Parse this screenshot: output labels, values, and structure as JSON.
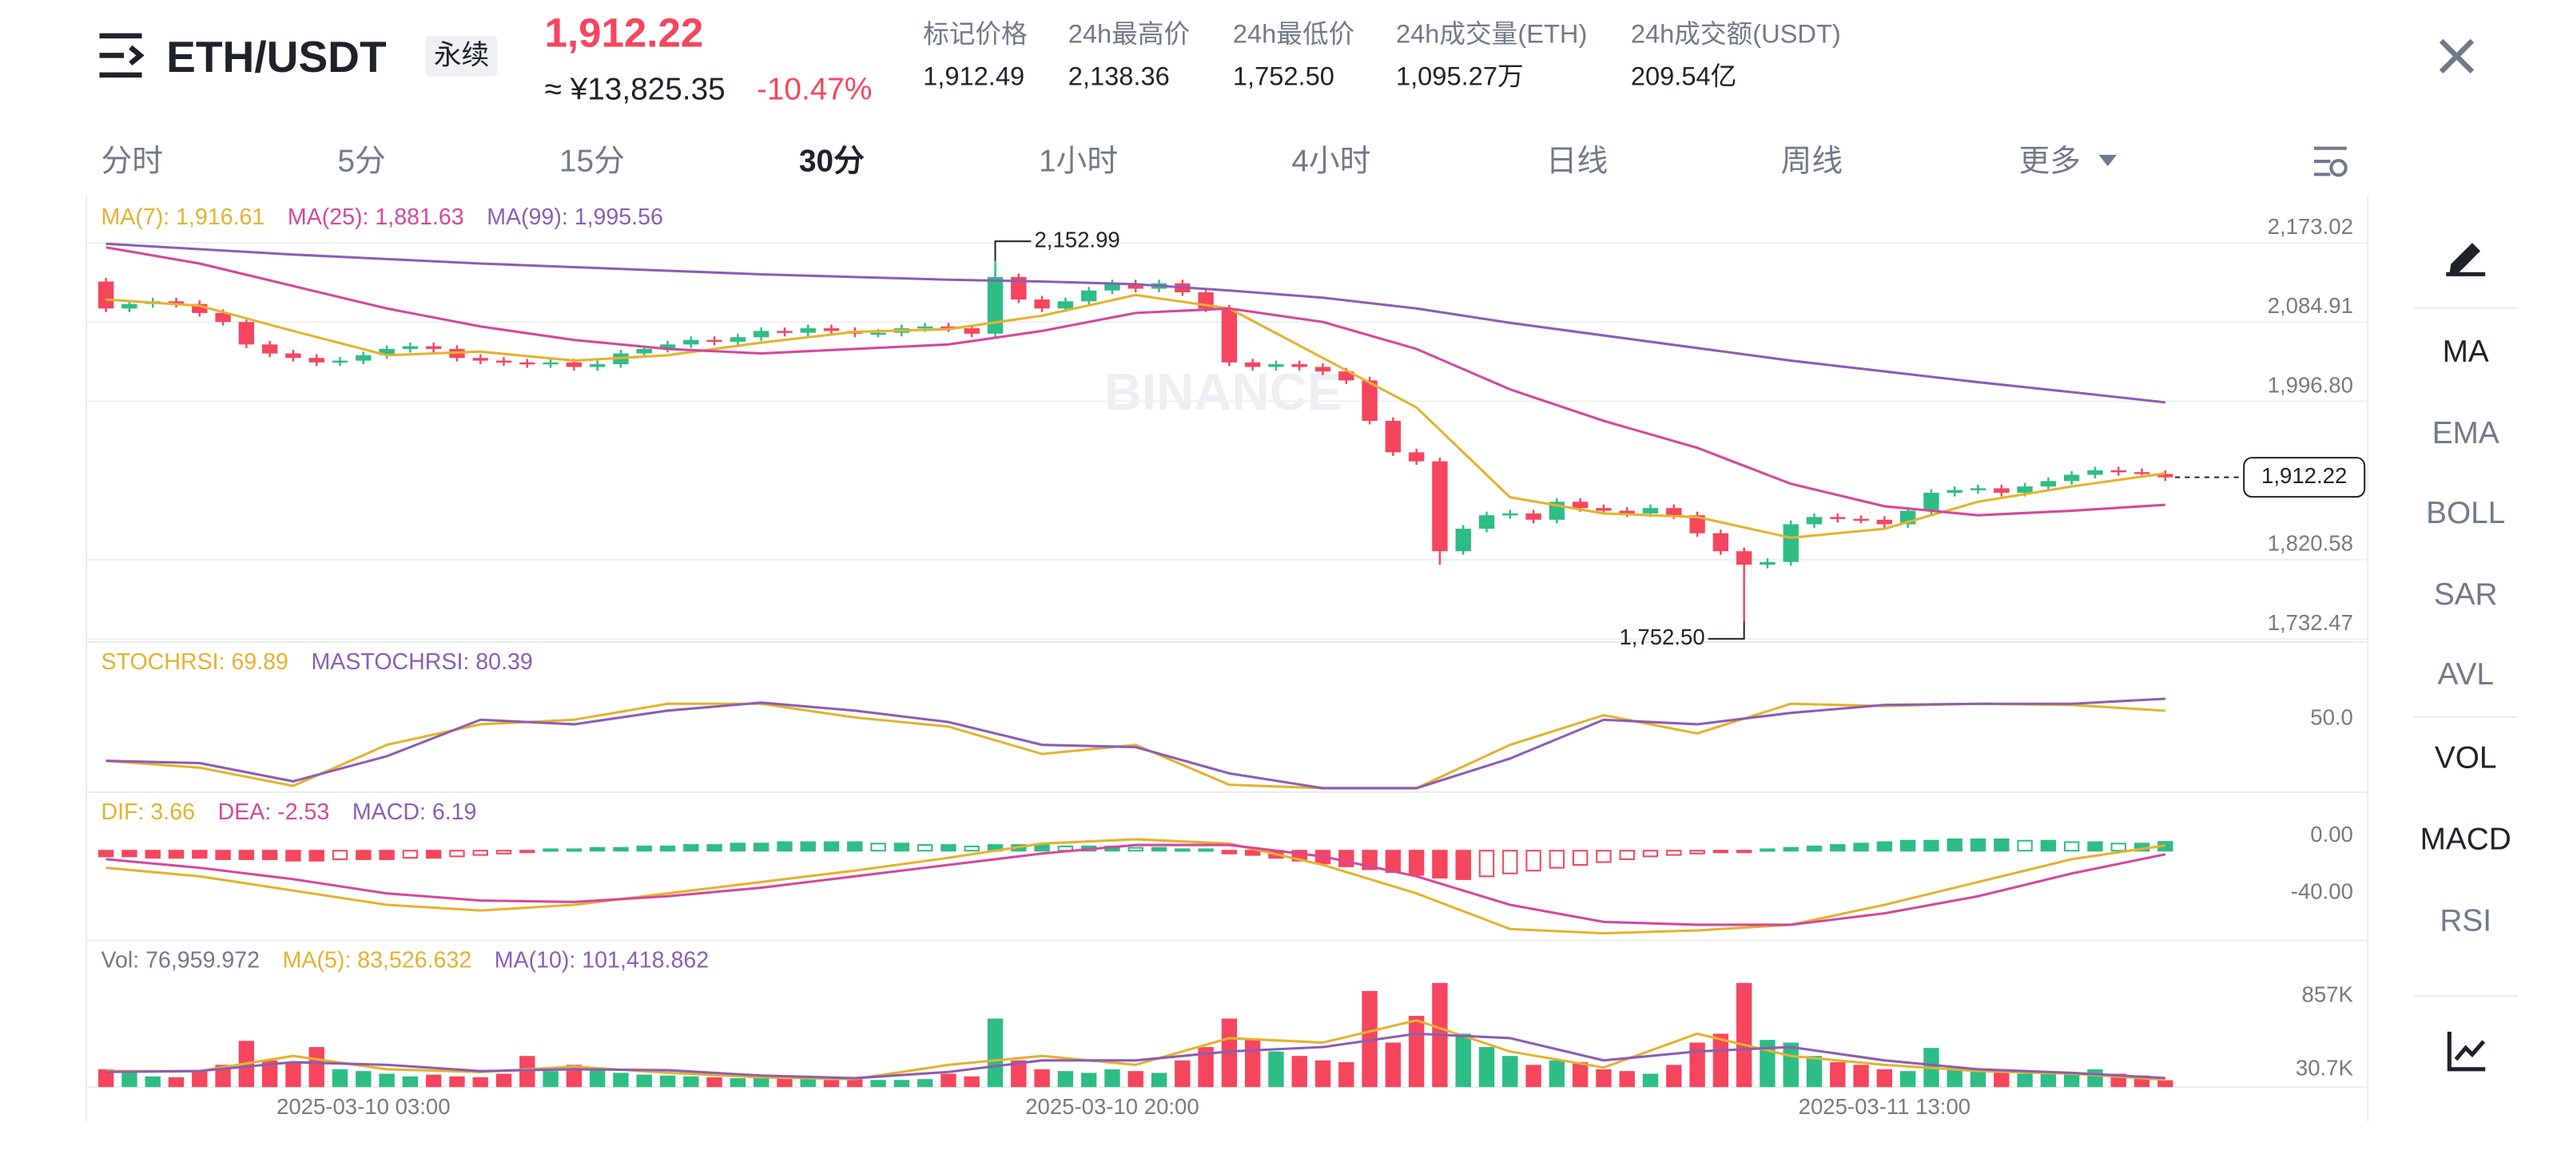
{
  "header": {
    "symbol": "ETH/USDT",
    "contract": "永续",
    "price": "1,912.22",
    "cny": "≈ ¥13,825.35",
    "change": "-10.47%",
    "stats": [
      {
        "label": "标记价格",
        "value": "1,912.49"
      },
      {
        "label": "24h最高价",
        "value": "2,138.36"
      },
      {
        "label": "24h最低价",
        "value": "1,752.50"
      },
      {
        "label": "24h成交量(ETH)",
        "value": "1,095.27万"
      },
      {
        "label": "24h成交额(USDT)",
        "value": "209.54亿"
      }
    ]
  },
  "tabs": [
    "分时",
    "5分",
    "15分",
    "30分",
    "1小时",
    "4小时",
    "日线",
    "周线",
    "更多"
  ],
  "active_tab": 3,
  "indicators": [
    "MA",
    "EMA",
    "BOLL",
    "SAR",
    "AVL",
    "VOL",
    "MACD",
    "RSI"
  ],
  "active_indicators": [
    0,
    5,
    6
  ],
  "watermark": "BINANCE",
  "chart_data": [
    {
      "type": "candlestick",
      "up_color": "#2ebd85",
      "down_color": "#f6465d",
      "categories": [
        null,
        null,
        null,
        null,
        null,
        null,
        null,
        null,
        null,
        null,
        null,
        "2025-03-10 03:00",
        null,
        null,
        null,
        null,
        null,
        null,
        null,
        null,
        null,
        null,
        null,
        null,
        null,
        null,
        null,
        null,
        null,
        null,
        null,
        null,
        null,
        null,
        null,
        null,
        null,
        null,
        null,
        null,
        null,
        null,
        null,
        "2025-03-10 20:00",
        null,
        null,
        null,
        null,
        null,
        null,
        null,
        null,
        null,
        null,
        null,
        null,
        null,
        null,
        null,
        null,
        null,
        null,
        null,
        null,
        null,
        null,
        null,
        null,
        null,
        null,
        null,
        null,
        null,
        null,
        null,
        null,
        "2025-03-11 13:00",
        null,
        null,
        null,
        null,
        null,
        null,
        null,
        null,
        null,
        null,
        null,
        null
      ],
      "open": [
        2130,
        2100,
        2105,
        2108,
        2105,
        2095,
        2085,
        2060,
        2050,
        2045,
        2040,
        2042,
        2048,
        2055,
        2058,
        2055,
        2045,
        2042,
        2040,
        2038,
        2040,
        2035,
        2038,
        2050,
        2055,
        2060,
        2065,
        2063,
        2068,
        2075,
        2073,
        2078,
        2075,
        2072,
        2073,
        2078,
        2080,
        2078,
        2072,
        2135,
        2110,
        2100,
        2108,
        2120,
        2128,
        2122,
        2128,
        2118,
        2100,
        2040,
        2035,
        2038,
        2035,
        2030,
        2020,
        1975,
        1940,
        1930,
        1830,
        1855,
        1870,
        1872,
        1865,
        1885,
        1878,
        1875,
        1872,
        1878,
        1870,
        1850,
        1830,
        1815,
        1818,
        1860,
        1868,
        1866,
        1865,
        1860,
        1875,
        1895,
        1898,
        1900,
        1895,
        1902,
        1908,
        1915,
        1920,
        1918,
        1916
      ],
      "high": [
        2134,
        2109,
        2112,
        2112,
        2109,
        2099,
        2089,
        2064,
        2054,
        2049,
        2046,
        2052,
        2059,
        2062,
        2062,
        2059,
        2049,
        2046,
        2044,
        2044,
        2044,
        2042,
        2054,
        2059,
        2064,
        2069,
        2069,
        2072,
        2079,
        2079,
        2082,
        2082,
        2079,
        2077,
        2082,
        2084,
        2084,
        2082,
        2152.99,
        2139,
        2114,
        2112,
        2124,
        2132,
        2132,
        2132,
        2132,
        2122,
        2104,
        2044,
        2042,
        2042,
        2039,
        2034,
        2024,
        1979,
        1944,
        1934,
        1859,
        1874,
        1876,
        1876,
        1889,
        1889,
        1882,
        1879,
        1882,
        1882,
        1874,
        1854,
        1834,
        1822,
        1864,
        1872,
        1872,
        1870,
        1869,
        1879,
        1899,
        1902,
        1904,
        1904,
        1906,
        1912,
        1919,
        1924,
        1924,
        1922,
        1920
      ],
      "low": [
        2096,
        2096,
        2101,
        2101,
        2091,
        2081,
        2056,
        2046,
        2041,
        2036,
        2036,
        2038,
        2044,
        2051,
        2051,
        2041,
        2038,
        2036,
        2034,
        2034,
        2031,
        2031,
        2034,
        2046,
        2051,
        2056,
        2059,
        2059,
        2064,
        2069,
        2069,
        2071,
        2068,
        2068,
        2069,
        2074,
        2074,
        2068,
        2068,
        2106,
        2096,
        2096,
        2104,
        2116,
        2118,
        2118,
        2114,
        2096,
        2036,
        2031,
        2031,
        2031,
        2026,
        2016,
        1971,
        1936,
        1926,
        1815,
        1826,
        1851,
        1866,
        1861,
        1861,
        1874,
        1871,
        1868,
        1868,
        1866,
        1846,
        1826,
        1752.5,
        1811,
        1814,
        1856,
        1862,
        1861,
        1856,
        1856,
        1871,
        1891,
        1894,
        1891,
        1891,
        1898,
        1904,
        1911,
        1914,
        1912,
        1908
      ],
      "close": [
        2100,
        2105,
        2108,
        2105,
        2095,
        2085,
        2060,
        2050,
        2045,
        2040,
        2042,
        2048,
        2055,
        2058,
        2055,
        2045,
        2042,
        2040,
        2038,
        2040,
        2035,
        2038,
        2050,
        2055,
        2060,
        2065,
        2063,
        2068,
        2075,
        2073,
        2078,
        2075,
        2072,
        2073,
        2078,
        2080,
        2078,
        2072,
        2135,
        2110,
        2100,
        2108,
        2120,
        2128,
        2122,
        2128,
        2118,
        2100,
        2040,
        2035,
        2038,
        2035,
        2030,
        2020,
        1975,
        1940,
        1930,
        1830,
        1855,
        1870,
        1872,
        1865,
        1885,
        1878,
        1875,
        1872,
        1878,
        1870,
        1850,
        1830,
        1815,
        1818,
        1860,
        1868,
        1866,
        1865,
        1860,
        1875,
        1895,
        1898,
        1900,
        1895,
        1902,
        1908,
        1915,
        1920,
        1918,
        1916,
        1912.22
      ],
      "series": [
        {
          "name": "MA(7): 1,916.61",
          "color": "#e5b22f",
          "x": [
            0,
            4,
            8,
            12,
            16,
            20,
            24,
            28,
            32,
            36,
            40,
            44,
            48,
            52,
            56,
            60,
            64,
            68,
            72,
            76,
            80,
            84,
            88
          ],
          "values": [
            2110,
            2103,
            2075,
            2048,
            2052,
            2042,
            2048,
            2062,
            2074,
            2077,
            2092,
            2115,
            2100,
            2045,
            1990,
            1890,
            1872,
            1868,
            1845,
            1855,
            1885,
            1902,
            1916.61
          ]
        },
        {
          "name": "MA(25): 1,881.63",
          "color": "#d6479d",
          "x": [
            0,
            4,
            8,
            12,
            16,
            20,
            24,
            28,
            32,
            36,
            40,
            44,
            48,
            52,
            56,
            60,
            64,
            68,
            72,
            76,
            80,
            84,
            88
          ],
          "values": [
            2168,
            2150,
            2125,
            2100,
            2080,
            2065,
            2055,
            2050,
            2055,
            2060,
            2075,
            2095,
            2100,
            2085,
            2055,
            2010,
            1975,
            1945,
            1905,
            1880,
            1870,
            1875,
            1881.63
          ]
        },
        {
          "name": "MA(99): 1,995.56",
          "color": "#8c5db4",
          "x": [
            0,
            4,
            8,
            12,
            16,
            20,
            24,
            28,
            32,
            36,
            40,
            44,
            48,
            52,
            56,
            60,
            64,
            68,
            72,
            76,
            80,
            84,
            88
          ],
          "values": [
            2172,
            2166,
            2160,
            2155,
            2150,
            2146,
            2142,
            2138,
            2135,
            2132,
            2130,
            2127,
            2120,
            2112,
            2100,
            2084,
            2070,
            2056,
            2042,
            2030,
            2018,
            2007,
            1995.56
          ]
        }
      ],
      "ylim": [
        1728.84,
        2221.97
      ],
      "yticks": [
        {
          "value": 2173.02,
          "label": "2,173.02"
        },
        {
          "value": 2084.91,
          "label": "2,084.91"
        },
        {
          "value": 1996.8,
          "label": "1,996.80"
        },
        {
          "value": 1820.58,
          "label": "1,820.58"
        },
        {
          "value": 1732.47,
          "label": "1,732.47"
        }
      ],
      "annotations": [
        {
          "index": 38,
          "value": 2152.99,
          "label": "2,152.99"
        },
        {
          "index": 70,
          "value": 1752.5,
          "label": "1,752.50"
        }
      ],
      "last_price": {
        "value": 1912.22,
        "label": "1,912.22"
      },
      "grid": true
    },
    {
      "type": "line",
      "series": [
        {
          "name": "STOCHRSI: 69.89",
          "color": "#e5b22f",
          "x": [
            0,
            4,
            8,
            12,
            16,
            20,
            24,
            28,
            32,
            36,
            40,
            44,
            48,
            52,
            56,
            60,
            64,
            68,
            72,
            76,
            80,
            84,
            88
          ],
          "values": [
            26,
            20,
            4,
            40,
            58,
            62,
            76,
            76,
            64,
            56,
            32,
            40,
            5,
            2,
            2,
            40,
            66,
            50,
            76,
            74,
            76,
            75,
            69.89
          ]
        },
        {
          "name": "MASTOCHRSI: 80.39",
          "color": "#8c5db4",
          "x": [
            0,
            4,
            8,
            12,
            16,
            20,
            24,
            28,
            32,
            36,
            40,
            44,
            48,
            52,
            56,
            60,
            64,
            68,
            72,
            76,
            80,
            84,
            88
          ],
          "values": [
            26,
            24,
            8,
            30,
            62,
            58,
            70,
            77,
            70,
            60,
            40,
            38,
            15,
            2,
            2,
            28,
            62,
            58,
            68,
            75,
            76,
            76,
            80.39
          ]
        }
      ],
      "ylim": [
        0,
        128.6
      ],
      "yticks": [
        {
          "value": 50,
          "label": "50.0"
        }
      ],
      "grid": false
    },
    {
      "type": "macd",
      "name": "MACD: 6.19",
      "values": [
        -4,
        -4,
        -5,
        -5,
        -5,
        -6,
        -6,
        -6,
        -7,
        -7,
        -6,
        -6,
        -6,
        -5,
        -5,
        -4,
        -3,
        -2,
        -1,
        1,
        1,
        2,
        2,
        3,
        3,
        4,
        4,
        5,
        5,
        6,
        6,
        6,
        6,
        5,
        5,
        4,
        4,
        3,
        4,
        4,
        4,
        3,
        3,
        3,
        2,
        2,
        1,
        1,
        -2,
        -3,
        -5,
        -7,
        -9,
        -11,
        -13,
        -15,
        -17,
        -19,
        -20,
        -18,
        -16,
        -14,
        -12,
        -10,
        -8,
        -6,
        -4,
        -3,
        -2,
        -1,
        -1,
        1,
        2,
        3,
        4,
        5,
        6,
        7,
        7,
        8,
        8,
        8,
        7,
        7,
        6,
        6,
        5,
        5,
        6.19
      ],
      "series": [
        {
          "name": "DIF: 3.66",
          "color": "#e5b22f",
          "x": [
            0,
            4,
            8,
            12,
            16,
            20,
            24,
            28,
            32,
            36,
            40,
            44,
            48,
            52,
            56,
            60,
            64,
            68,
            72,
            76,
            80,
            84,
            88
          ],
          "values": [
            -12,
            -18,
            -28,
            -38,
            -42,
            -38,
            -30,
            -22,
            -14,
            -5,
            5,
            8,
            5,
            -10,
            -30,
            -55,
            -58,
            -56,
            -52,
            -38,
            -22,
            -6,
            3.66
          ]
        },
        {
          "name": "DEA: -2.53",
          "color": "#d6479d",
          "x": [
            0,
            4,
            8,
            12,
            16,
            20,
            24,
            28,
            32,
            36,
            40,
            44,
            48,
            52,
            56,
            60,
            64,
            68,
            72,
            76,
            80,
            84,
            88
          ],
          "values": [
            -6,
            -12,
            -20,
            -30,
            -35,
            -36,
            -32,
            -26,
            -18,
            -10,
            -2,
            4,
            4,
            -4,
            -18,
            -38,
            -50,
            -52,
            -52,
            -44,
            -32,
            -16,
            -2.53
          ]
        }
      ],
      "ylim": [
        -63,
        40
      ],
      "yticks": [
        {
          "value": 0,
          "label": "0.00"
        },
        {
          "value": -40,
          "label": "-40.00"
        }
      ],
      "grid": false
    },
    {
      "type": "volume",
      "name": "Vol: 76,959.972",
      "values": [
        200000,
        180000,
        120000,
        110000,
        180000,
        250000,
        520000,
        300000,
        280000,
        450000,
        200000,
        180000,
        150000,
        120000,
        140000,
        120000,
        110000,
        150000,
        350000,
        180000,
        250000,
        200000,
        160000,
        140000,
        130000,
        120000,
        110000,
        100000,
        110000,
        100000,
        90000,
        80000,
        90000,
        80000,
        80000,
        90000,
        150000,
        120000,
        770000,
        300000,
        200000,
        180000,
        160000,
        200000,
        180000,
        160000,
        300000,
        450000,
        770000,
        550000,
        400000,
        350000,
        300000,
        280000,
        1080000,
        500000,
        800000,
        1170000,
        600000,
        450000,
        350000,
        250000,
        300000,
        280000,
        200000,
        180000,
        150000,
        250000,
        500000,
        600000,
        1170000,
        530000,
        500000,
        350000,
        280000,
        250000,
        200000,
        180000,
        440000,
        200000,
        180000,
        160000,
        150000,
        170000,
        160000,
        200000,
        150000,
        130000,
        76959.972
      ],
      "series": [
        {
          "name": "MA(5): 83,526.632",
          "color": "#e5b22f",
          "x": [
            0,
            4,
            8,
            12,
            16,
            20,
            24,
            28,
            32,
            36,
            40,
            44,
            48,
            52,
            56,
            60,
            64,
            68,
            72,
            76,
            80,
            84,
            88
          ],
          "values": [
            180000,
            180000,
            350000,
            200000,
            170000,
            230000,
            160000,
            110000,
            90000,
            250000,
            350000,
            250000,
            550000,
            500000,
            750000,
            400000,
            220000,
            600000,
            350000,
            250000,
            180000,
            150000,
            83526.632
          ]
        },
        {
          "name": "MA(10): 101,418.862",
          "color": "#8c5db4",
          "x": [
            0,
            4,
            8,
            12,
            16,
            20,
            24,
            28,
            32,
            36,
            40,
            44,
            48,
            52,
            56,
            60,
            64,
            68,
            72,
            76,
            80,
            84,
            88
          ],
          "values": [
            170000,
            180000,
            280000,
            250000,
            180000,
            200000,
            190000,
            130000,
            100000,
            170000,
            300000,
            300000,
            400000,
            450000,
            600000,
            550000,
            300000,
            400000,
            450000,
            300000,
            200000,
            160000,
            101418.862
          ]
        }
      ],
      "ylim": [
        0,
        1630000
      ],
      "yticks": [
        {
          "value": 857000,
          "label": "857K"
        },
        {
          "value": 30700,
          "label": "30.7K"
        }
      ],
      "grid": false
    }
  ]
}
